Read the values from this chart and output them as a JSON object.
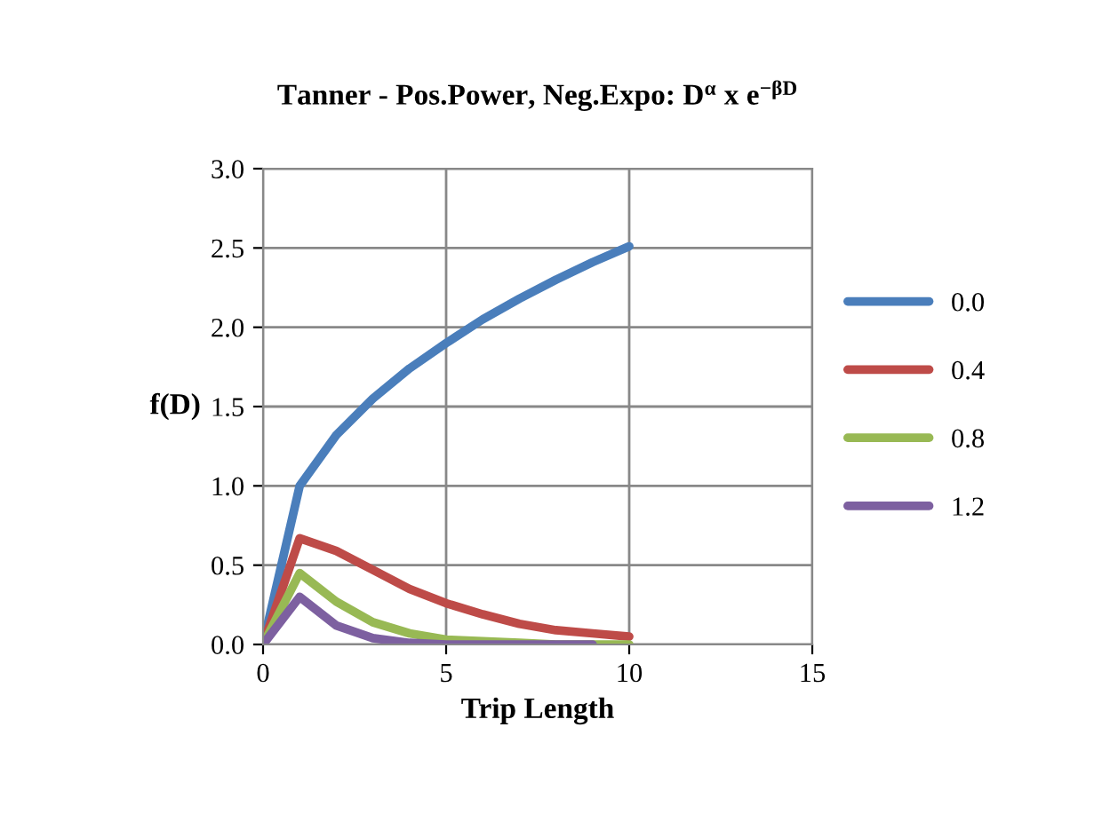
{
  "chart_data": {
    "type": "line",
    "title": "Tanner - Pos.Power, Neg.Expo: D$^{α}$ x e$^{−βD}$",
    "xlabel": "Trip Length",
    "ylabel": "f(D)",
    "x": [
      0,
      1,
      2,
      3,
      4,
      5,
      6,
      7,
      8,
      9,
      10
    ],
    "series": [
      {
        "name": "0.0",
        "color": "#4a7ebb",
        "values": [
          0,
          1.0,
          1.32,
          1.55,
          1.74,
          1.9,
          2.05,
          2.18,
          2.3,
          2.41,
          2.51
        ]
      },
      {
        "name": "0.4",
        "color": "#be4b48",
        "values": [
          0,
          0.67,
          0.59,
          0.47,
          0.35,
          0.26,
          0.19,
          0.13,
          0.09,
          0.07,
          0.05
        ]
      },
      {
        "name": "0.8",
        "color": "#98b954",
        "values": [
          0,
          0.45,
          0.27,
          0.14,
          0.07,
          0.03,
          0.02,
          0.01,
          0.0,
          0.0,
          0.0
        ]
      },
      {
        "name": "1.2",
        "color": "#7d60a0",
        "values": [
          0,
          0.3,
          0.12,
          0.04,
          0.01,
          0.0,
          0.0,
          0.0,
          0.0,
          0.0,
          null
        ]
      }
    ],
    "xlim": [
      0,
      15
    ],
    "xticks": [
      0,
      5,
      10,
      15
    ],
    "ylim": [
      0,
      3
    ],
    "yticks": [
      {
        "value": 0,
        "label": "0.0"
      },
      0.5,
      {
        "value": 1,
        "label": "1.0"
      },
      1.5,
      {
        "value": 2,
        "label": "2.0"
      },
      2.5,
      {
        "value": 3,
        "label": "3.0"
      }
    ],
    "grid": true,
    "legend": "right",
    "marker": "none",
    "line_style": "solid"
  }
}
